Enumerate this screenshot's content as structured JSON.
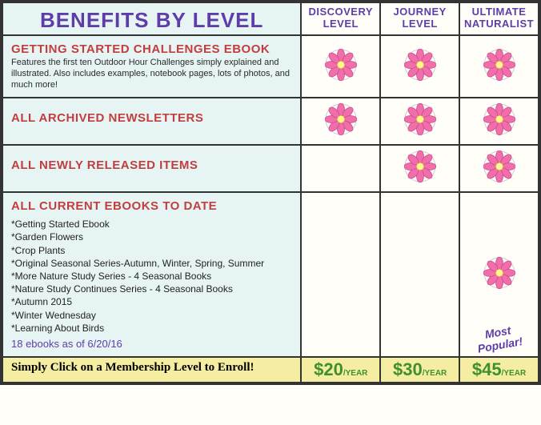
{
  "colors": {
    "purple": "#5e3da8",
    "red": "#c23e3e",
    "green": "#3f8f2f",
    "bg_label": "#e7f4f4",
    "bg_cell": "#fffef8",
    "bg_footer": "#f5eea2",
    "border": "#333333",
    "flower_petal": "#f06eaa",
    "flower_center": "#fff68f"
  },
  "header": {
    "title": "BENEFITS BY LEVEL",
    "tiers": [
      {
        "line1": "DISCOVERY",
        "line2": "LEVEL"
      },
      {
        "line1": "JOURNEY",
        "line2": "LEVEL"
      },
      {
        "line1": "ULTIMATE",
        "line2": "NATURALIST"
      }
    ]
  },
  "rows": [
    {
      "title": "GETTING STARTED CHALLENGES EBOOK",
      "desc": "Features the first ten Outdoor Hour Challenges simply explained and illustrated. Also includes examples, notebook pages, lots of photos, and much more!",
      "checks": [
        true,
        true,
        true
      ]
    },
    {
      "title": "ALL ARCHIVED NEWSLETTERS",
      "desc": "",
      "checks": [
        true,
        true,
        true
      ]
    },
    {
      "title": "ALL NEWLY RELEASED ITEMS",
      "desc": "",
      "checks": [
        false,
        true,
        true
      ]
    },
    {
      "title": "ALL CURRENT EBOOKS TO DATE",
      "desc": "",
      "ebooks": [
        "Getting Started Ebook",
        "Garden Flowers",
        "Crop Plants",
        "Original Seasonal Series-Autumn, Winter, Spring, Summer",
        "More Nature Study Series - 4 Seasonal Books",
        "Nature Study Continues Series - 4 Seasonal Books",
        "Autumn 2015",
        "Winter Wednesday",
        "Learning About Birds"
      ],
      "count_note": "18 ebooks as of 6/20/16",
      "checks": [
        false,
        false,
        true
      ],
      "most_popular": "Most Popular!"
    }
  ],
  "footer": {
    "label": "Simply Click on a Membership Level to Enroll!",
    "prices": [
      {
        "amount": "$20",
        "per": "/YEAR"
      },
      {
        "amount": "$30",
        "per": "/YEAR"
      },
      {
        "amount": "$45",
        "per": "/YEAR"
      }
    ]
  }
}
